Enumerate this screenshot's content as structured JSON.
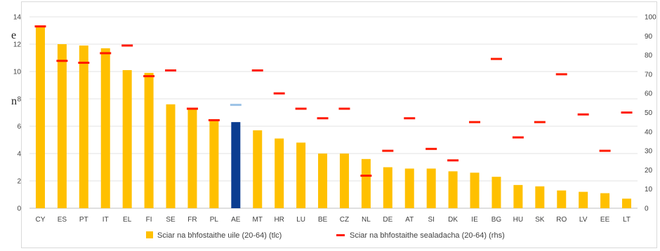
{
  "chart_data": {
    "type": "bar",
    "categories": [
      "CY",
      "ES",
      "PT",
      "IT",
      "EL",
      "FI",
      "SE",
      "FR",
      "PL",
      "AE",
      "MT",
      "HR",
      "LU",
      "BE",
      "CZ",
      "NL",
      "DE",
      "AT",
      "SI",
      "DK",
      "IE",
      "BG",
      "HU",
      "SK",
      "RO",
      "LV",
      "EE",
      "LT"
    ],
    "highlight_category": "AE",
    "series": [
      {
        "name": "Sciar na bhfostaithe uile (20-64) (tlc)",
        "axis": "left",
        "color": "#FFC000",
        "highlight_color": "#0B3D91",
        "values": [
          13.3,
          12.0,
          11.9,
          11.7,
          10.1,
          9.9,
          7.6,
          7.3,
          6.5,
          6.3,
          5.7,
          5.1,
          4.8,
          4.0,
          4.0,
          3.6,
          3.0,
          2.9,
          2.9,
          2.7,
          2.6,
          2.3,
          1.7,
          1.6,
          1.3,
          1.2,
          1.1,
          0.7
        ]
      },
      {
        "name": "Sciar na bhfostaithe sealadacha (20-64) (rhs)",
        "axis": "right",
        "color": "#FF1A00",
        "highlight_color": "#9DC3E6",
        "marker": "dash",
        "values": [
          95,
          77,
          76,
          81,
          85,
          69,
          72,
          52,
          46,
          54,
          72,
          60,
          52,
          47,
          52,
          17,
          30,
          47,
          31,
          25,
          45,
          78,
          37,
          45,
          70,
          49,
          30,
          50
        ]
      }
    ],
    "y_left": {
      "range": [
        0,
        14
      ],
      "ticks": [
        "0",
        "2",
        "4",
        "6",
        "8",
        "10",
        "12",
        "14"
      ]
    },
    "y_right": {
      "range": [
        0,
        100
      ],
      "ticks": [
        "0",
        "10",
        "20",
        "30",
        "40",
        "50",
        "60",
        "70",
        "80",
        "90",
        "100"
      ]
    },
    "grid": true,
    "legend_position": "bottom"
  },
  "page_edge": {
    "lines": [
      "e",
      "n"
    ]
  }
}
